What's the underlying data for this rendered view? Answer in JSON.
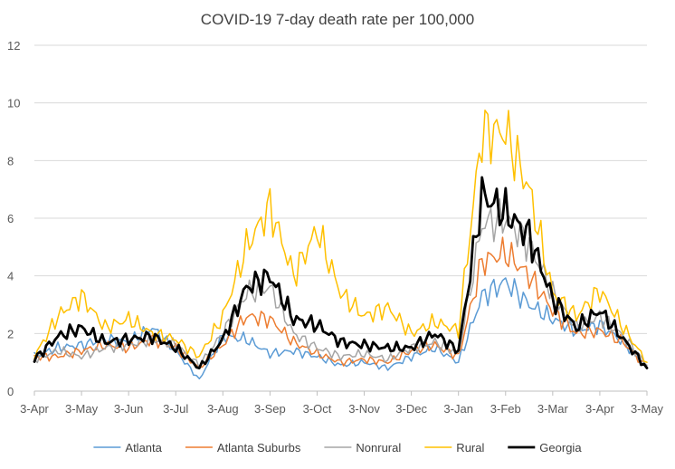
{
  "chart_data": {
    "type": "line",
    "title": "COVID-19 7-day death rate per 100,000",
    "xlabel": "",
    "ylabel": "",
    "ylim": [
      0,
      12
    ],
    "yticks": [
      0,
      2,
      4,
      6,
      8,
      10,
      12
    ],
    "x_tick_labels": [
      "3-Apr",
      "3-May",
      "3-Jun",
      "3-Jul",
      "3-Aug",
      "3-Sep",
      "3-Oct",
      "3-Nov",
      "3-Dec",
      "3-Jan",
      "3-Feb",
      "3-Mar",
      "3-Apr",
      "3-May"
    ],
    "grid": "horizontal",
    "legend_position": "bottom",
    "x_points": [
      "3-Apr",
      "18-Apr",
      "3-May",
      "18-May",
      "3-Jun",
      "18-Jun",
      "3-Jul",
      "18-Jul",
      "3-Aug",
      "18-Aug",
      "3-Sep",
      "18-Sep",
      "3-Oct",
      "18-Oct",
      "3-Nov",
      "18-Nov",
      "3-Dec",
      "18-Dec",
      "3-Jan",
      "18-Jan",
      "3-Feb",
      "18-Feb",
      "3-Mar",
      "18-Mar",
      "3-Apr",
      "18-Apr",
      "3-May"
    ],
    "series": [
      {
        "name": "Atlanta",
        "color": "#5B9BD5",
        "width": 1.5,
        "values": [
          1.2,
          1.5,
          1.6,
          1.8,
          1.7,
          2.2,
          1.4,
          0.4,
          1.9,
          1.8,
          1.3,
          1.4,
          1.2,
          0.9,
          1.0,
          0.8,
          1.2,
          1.5,
          1.0,
          3.3,
          3.8,
          3.0,
          2.5,
          2.1,
          2.3,
          1.7,
          0.8
        ]
      },
      {
        "name": "Atlanta Suburbs",
        "color": "#ED7D31",
        "width": 1.5,
        "values": [
          1.2,
          1.2,
          1.4,
          1.6,
          1.5,
          1.8,
          1.5,
          0.8,
          1.6,
          2.6,
          2.5,
          1.7,
          1.3,
          1.0,
          1.1,
          1.0,
          1.4,
          1.6,
          1.2,
          4.5,
          4.8,
          4.0,
          2.8,
          2.0,
          2.1,
          1.7,
          0.8
        ]
      },
      {
        "name": "Nonrural",
        "color": "#A5A5A5",
        "width": 1.5,
        "values": [
          1.1,
          1.4,
          1.2,
          1.5,
          1.6,
          1.8,
          1.6,
          0.9,
          2.0,
          3.4,
          3.6,
          2.0,
          1.5,
          1.2,
          1.3,
          1.1,
          1.5,
          1.7,
          1.3,
          5.8,
          6.0,
          5.1,
          3.4,
          2.2,
          2.6,
          1.9,
          0.9
        ]
      },
      {
        "name": "Rural",
        "color": "#FFC000",
        "width": 1.5,
        "values": [
          1.2,
          2.6,
          3.3,
          2.2,
          2.5,
          2.0,
          1.8,
          1.2,
          2.6,
          5.0,
          6.4,
          4.0,
          5.6,
          3.4,
          2.6,
          2.9,
          2.0,
          2.4,
          2.1,
          9.0,
          9.0,
          7.0,
          3.4,
          2.6,
          3.5,
          2.2,
          1.0
        ]
      },
      {
        "name": "Georgia",
        "color": "#000000",
        "width": 2.8,
        "values": [
          1.1,
          1.9,
          2.2,
          1.7,
          1.8,
          1.9,
          1.5,
          0.8,
          1.8,
          3.6,
          4.0,
          2.5,
          2.3,
          1.7,
          1.6,
          1.5,
          1.5,
          2.0,
          1.4,
          6.8,
          6.2,
          5.4,
          3.2,
          2.2,
          2.8,
          1.8,
          0.8
        ]
      }
    ]
  }
}
